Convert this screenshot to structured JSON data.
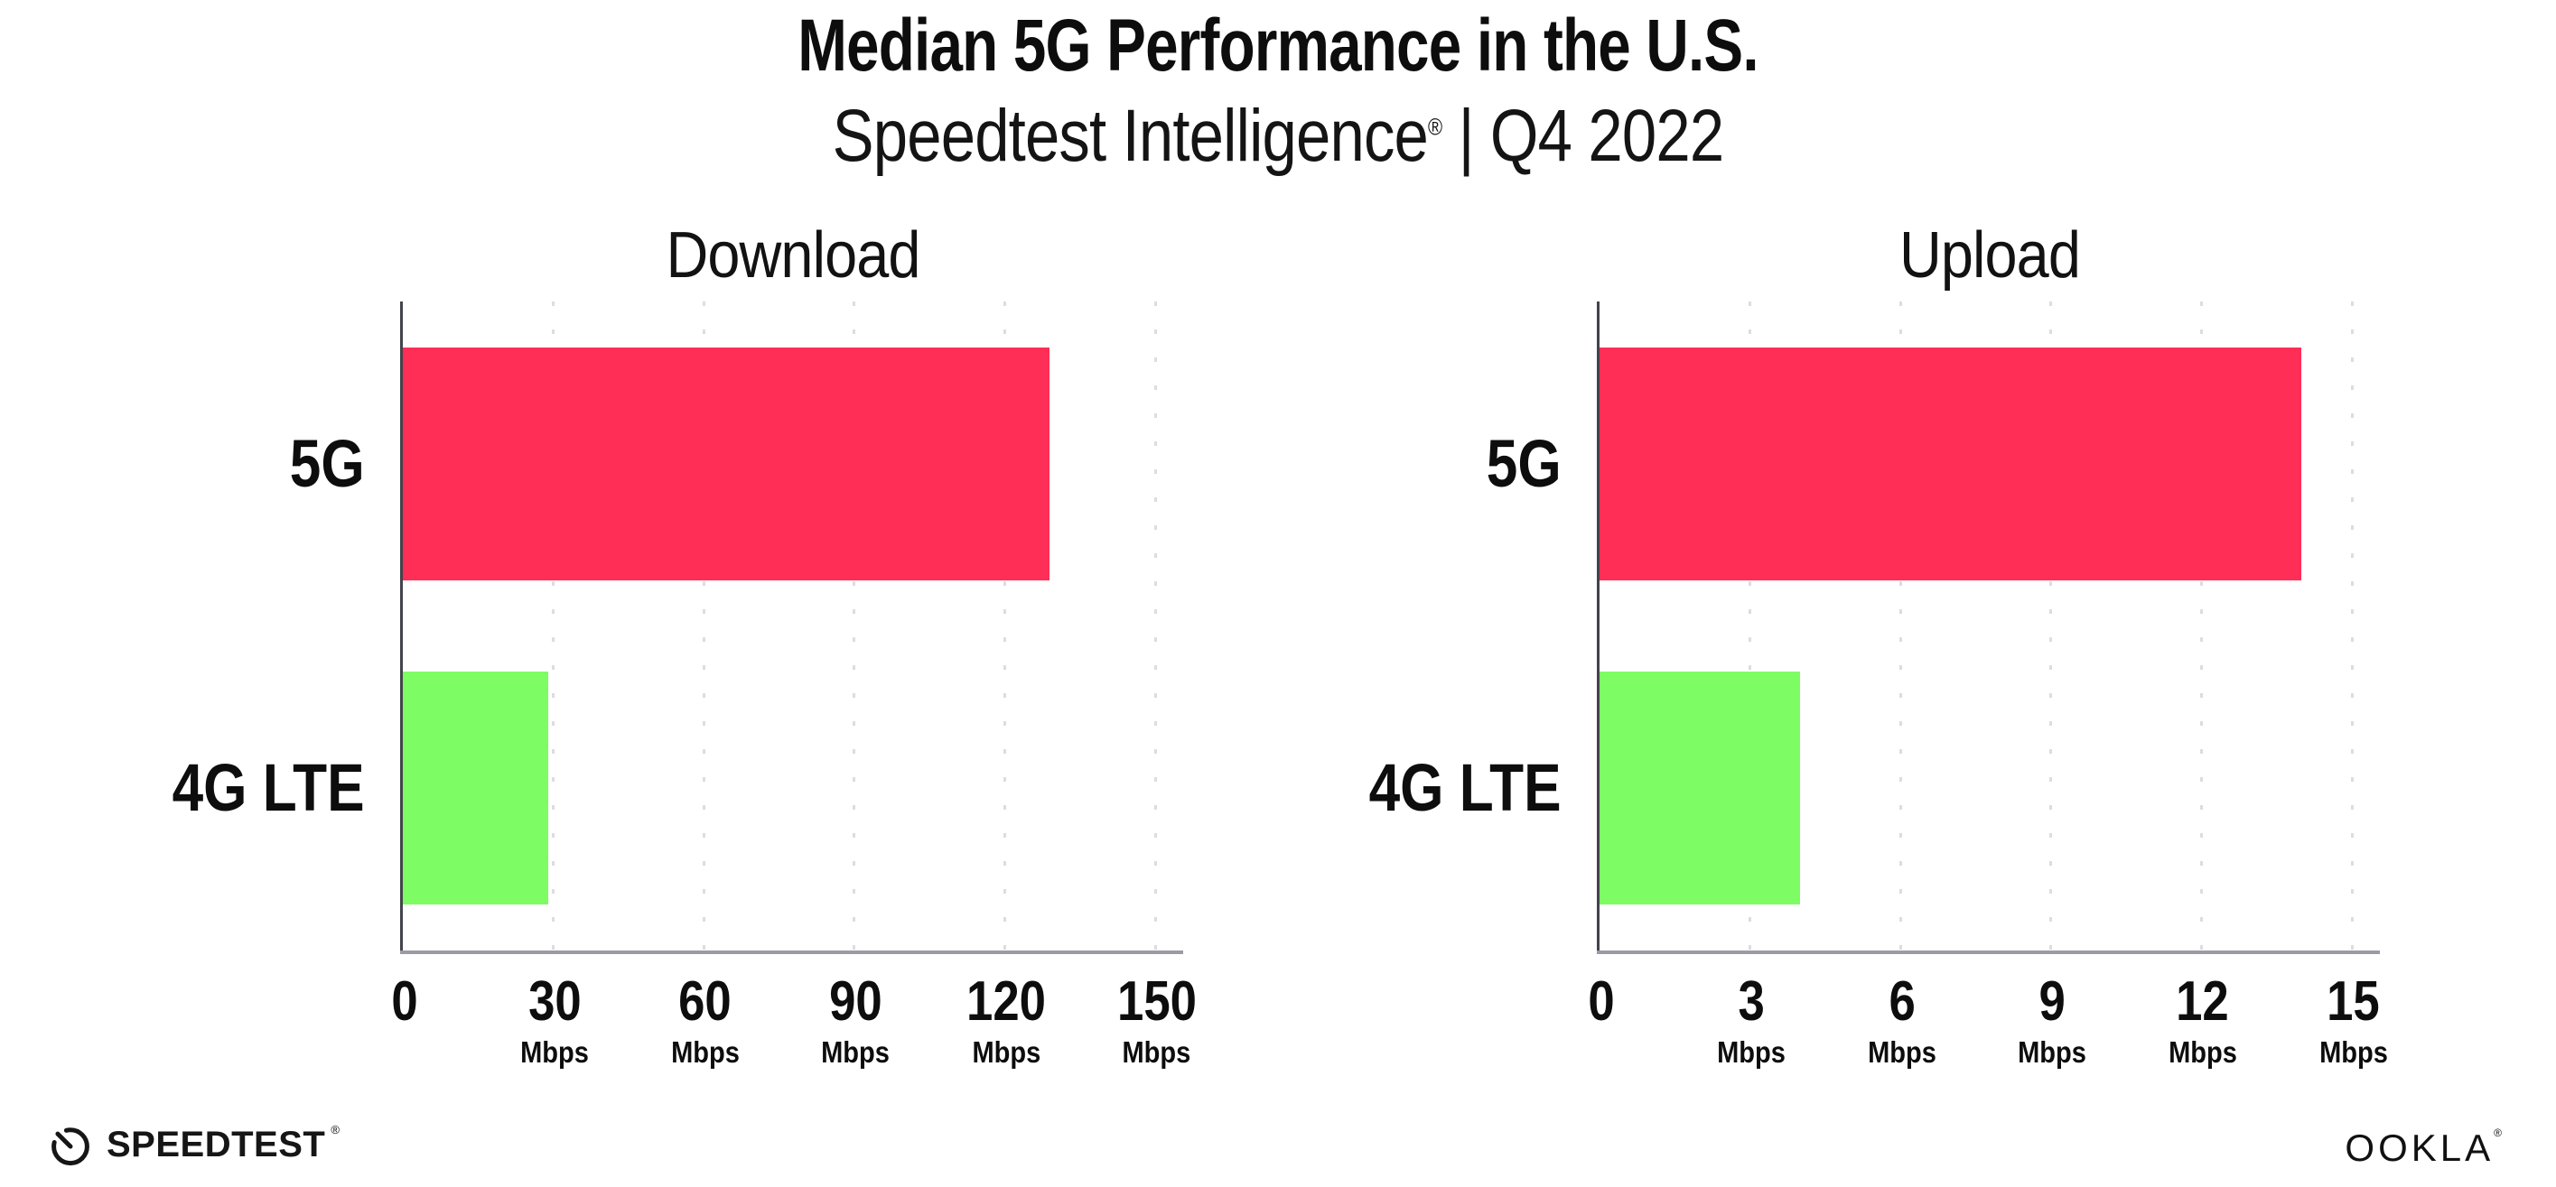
{
  "header": {
    "title": "Median 5G Performance in the U.S.",
    "subtitle_brand": "Speedtest Intelligence",
    "subtitle_mark": "®",
    "subtitle_rest": " | Q4 2022"
  },
  "chart_data": [
    {
      "type": "bar",
      "orientation": "horizontal",
      "title": "Download",
      "categories": [
        "5G",
        "4G LTE"
      ],
      "values": [
        129,
        29
      ],
      "unit": "Mbps",
      "xticks": [
        0,
        30,
        60,
        90,
        120,
        150
      ],
      "xlim": [
        0,
        155
      ],
      "grid": "dotted-vertical",
      "legend": "none",
      "bar_colors": [
        "#ff2e56",
        "#7efc64"
      ]
    },
    {
      "type": "bar",
      "orientation": "horizontal",
      "title": "Upload",
      "categories": [
        "5G",
        "4G LTE"
      ],
      "values": [
        14,
        4
      ],
      "unit": "Mbps",
      "xticks": [
        0,
        3,
        6,
        9,
        12,
        15
      ],
      "xlim": [
        0,
        15.5
      ],
      "grid": "dotted-vertical",
      "legend": "none",
      "bar_colors": [
        "#ff2e56",
        "#7efc64"
      ]
    }
  ],
  "footer": {
    "speedtest_label": "SPEEDTEST",
    "speedtest_mark": "®",
    "gauge_icon": "speedtest-gauge-icon",
    "ookla_label": "OOKLA",
    "ookla_mark": "®"
  },
  "colors": {
    "bar_5g": "#ff2e56",
    "bar_4g_lte": "#7efc64",
    "gridline": "#dcdce6",
    "x_axis": "#9b9ba3",
    "y_axis": "#43434b",
    "text": "#0d0d0d",
    "background": "#ffffff"
  }
}
